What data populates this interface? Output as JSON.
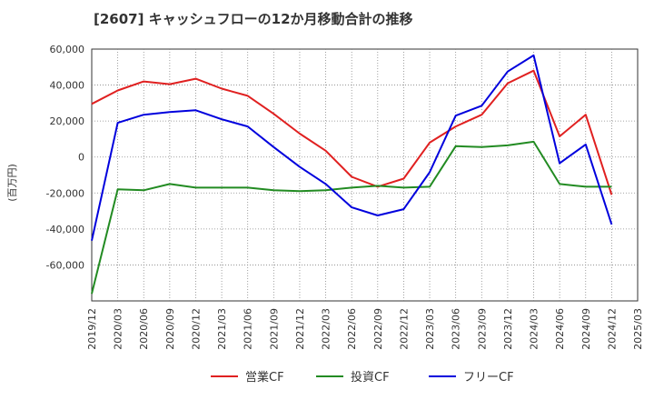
{
  "chart_data": {
    "type": "line",
    "title": "[2607]  キャッシュフローの12か月移動合計の推移",
    "ylabel": "(百万円)",
    "xlabel": "",
    "ylim": [
      -80000,
      60000
    ],
    "yticks": [
      60000,
      40000,
      20000,
      0,
      -20000,
      -40000,
      -60000
    ],
    "ytick_labels": [
      "60,000",
      "40,000",
      "20,000",
      "0",
      "-20,000",
      "-40,000",
      "-60,000"
    ],
    "categories": [
      "2019/12",
      "2020/03",
      "2020/06",
      "2020/09",
      "2020/12",
      "2021/03",
      "2021/06",
      "2021/09",
      "2021/12",
      "2022/03",
      "2022/06",
      "2022/09",
      "2022/12",
      "2023/03",
      "2023/06",
      "2023/09",
      "2023/12",
      "2024/03",
      "2024/06",
      "2024/09",
      "2024/12",
      "2025/03"
    ],
    "series": [
      {
        "name": "営業CF",
        "color": "#e02020",
        "values": [
          29500,
          37000,
          42000,
          40500,
          43500,
          38000,
          34000,
          24000,
          13000,
          3500,
          -11000,
          -16500,
          -12000,
          8000,
          17000,
          23500,
          41000,
          48000,
          11500,
          23500,
          -21000,
          null
        ]
      },
      {
        "name": "投資CF",
        "color": "#228b22",
        "values": [
          -76000,
          -18000,
          -18500,
          -15000,
          -17000,
          -17000,
          -17000,
          -18500,
          -19000,
          -18500,
          -17000,
          -16000,
          -17000,
          -16500,
          6000,
          5500,
          6500,
          8500,
          -15000,
          -16500,
          -16500,
          null
        ]
      },
      {
        "name": "フリーCF",
        "color": "#0000dd",
        "values": [
          -46500,
          19000,
          23500,
          25000,
          26000,
          21000,
          17000,
          5500,
          -5500,
          -15000,
          -28000,
          -32500,
          -29000,
          -8500,
          23000,
          28500,
          47500,
          56500,
          -3500,
          7000,
          -37500,
          null
        ]
      }
    ],
    "grid": true,
    "legend_position": "bottom-center"
  }
}
